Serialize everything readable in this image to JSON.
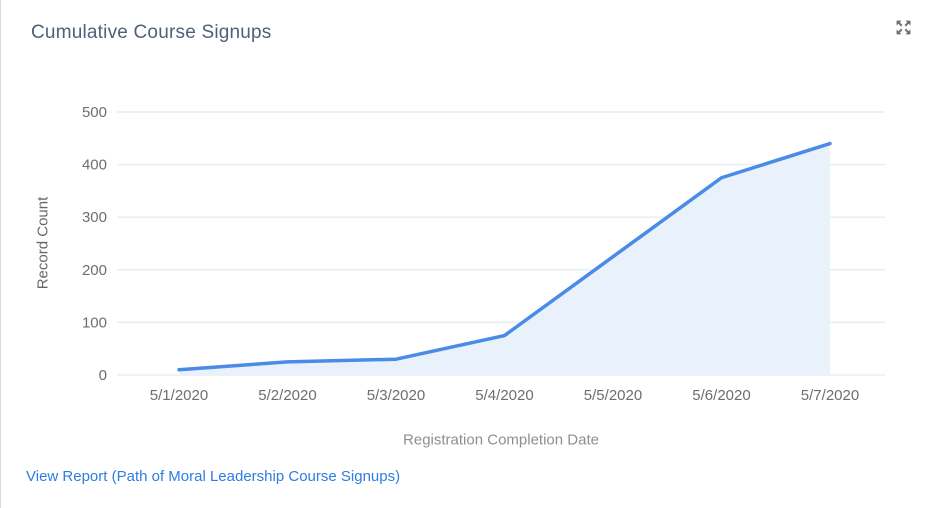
{
  "widget": {
    "title": "Cumulative Course Signups"
  },
  "icons": {
    "expand": "expand-arrows-outward-icon"
  },
  "footer": {
    "view_report": "View Report (Path of Moral Leadership Course Signups)"
  },
  "colors": {
    "line": "#4a8be8",
    "area_fill": "#e9f1fb",
    "grid": "#e8eef5",
    "title_text": "#51607a",
    "tick_text": "#6b6e73",
    "axis_title_text": "#8b8f94",
    "link": "#2e7de2",
    "icon": "#6d6d6d",
    "card_border": "#d9dbde"
  },
  "chart_data": {
    "type": "area",
    "title": "Cumulative Course Signups",
    "categories": [
      "5/1/2020",
      "5/2/2020",
      "5/3/2020",
      "5/4/2020",
      "5/5/2020",
      "5/6/2020",
      "5/7/2020"
    ],
    "values": [
      10,
      25,
      30,
      75,
      225,
      375,
      440
    ],
    "series_name": "Record Count",
    "xlabel": "Registration Completion Date",
    "ylabel": "Record Count",
    "ylim": [
      0,
      500
    ],
    "yticks": [
      0,
      100,
      200,
      300,
      400,
      500
    ],
    "grid": true,
    "legend": false
  }
}
